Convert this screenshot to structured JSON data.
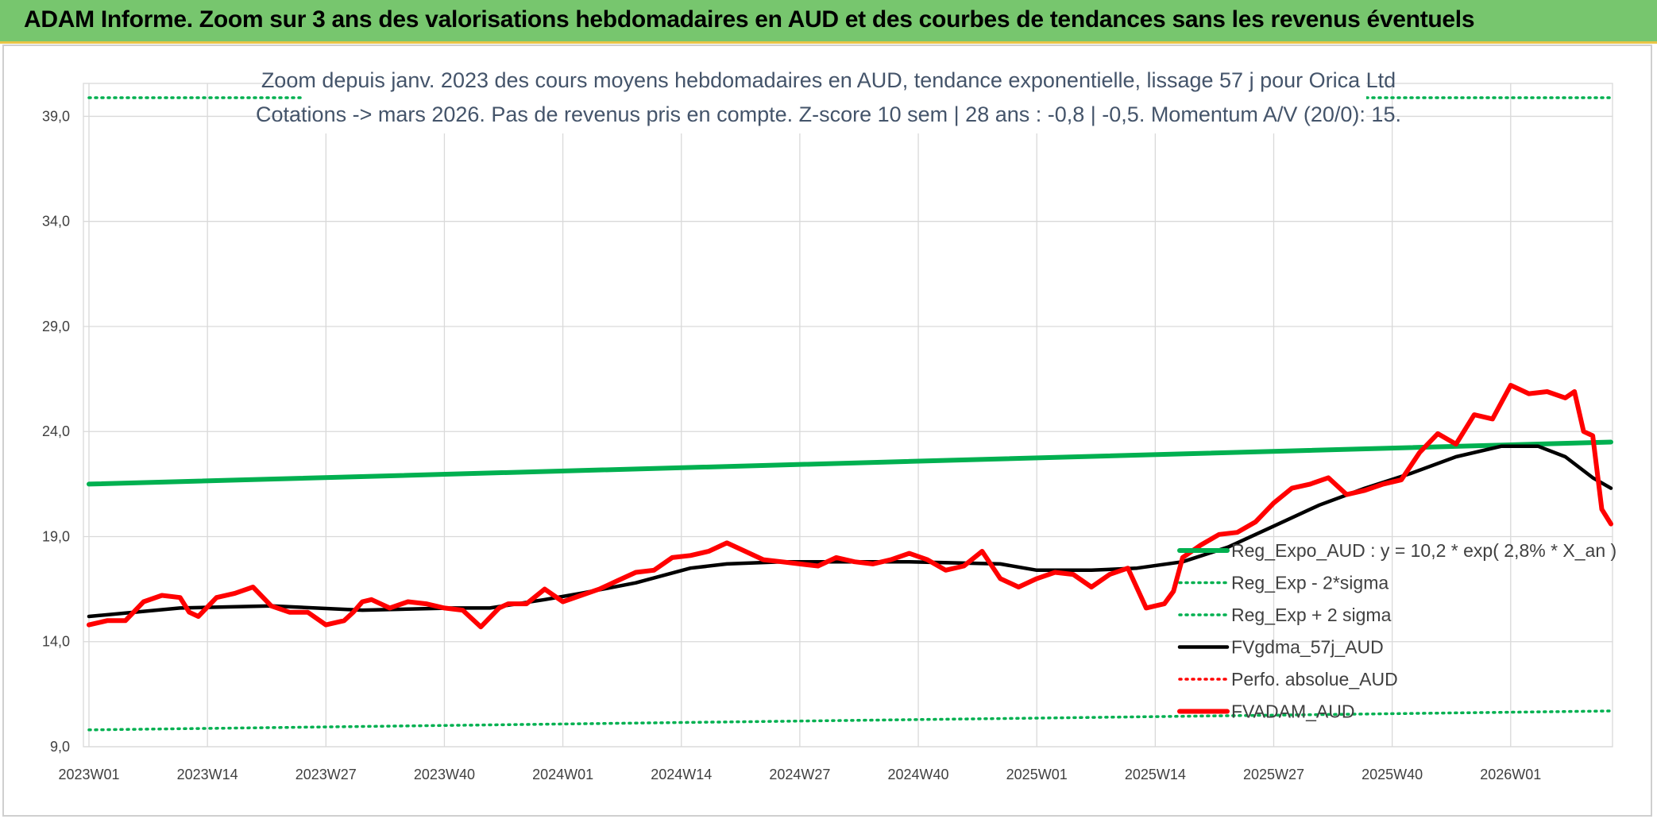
{
  "header": {
    "title": "ADAM Informe. Zoom sur 3 ans des valorisations hebdomadaires en AUD et des courbes de tendances sans les revenus éventuels"
  },
  "chart_data": {
    "type": "line",
    "title": "Zoom depuis janv. 2023 des cours moyens hebdomadaires en AUD, tendance exponentielle, lissage 57 j pour Orica Ltd",
    "subtitle": "Cotations -> mars 2026. Pas de revenus pris en compte. Z-score 10 sem | 28 ans : -0,8 | -0,5. Momentum A/V (20/0): 15.",
    "xlabel": "",
    "ylabel": "",
    "ylim": [
      9,
      40
    ],
    "xlim": [
      0,
      167
    ],
    "grid": true,
    "legend_position": "bottom-right",
    "y_ticks": [
      "9,0",
      "14,0",
      "19,0",
      "24,0",
      "29,0",
      "34,0",
      "39,0"
    ],
    "y_tick_values": [
      9,
      14,
      19,
      24,
      29,
      34,
      39
    ],
    "x_ticks": [
      "2023W01",
      "2023W14",
      "2023W27",
      "2023W40",
      "2024W01",
      "2024W14",
      "2024W27",
      "2024W40",
      "2025W01",
      "2025W14",
      "2025W27",
      "2025W40",
      "2026W01"
    ],
    "x_tick_positions": [
      0,
      13,
      26,
      39,
      52,
      65,
      78,
      91,
      104,
      117,
      130,
      143,
      156
    ],
    "series": [
      {
        "name": "Reg_Expo_AUD : y = 10,2 * exp( 2,8% *  X_an )",
        "color": "#00b050",
        "style": "solid-thick",
        "x": [
          0,
          167
        ],
        "values": [
          21.5,
          23.5
        ]
      },
      {
        "name": "Reg_Exp - 2*sigma",
        "color": "#00b050",
        "style": "dotted",
        "x": [
          0,
          167
        ],
        "values": [
          9.8,
          10.7
        ]
      },
      {
        "name": "Reg_Exp + 2 sigma",
        "color": "#00b050",
        "style": "dotted",
        "x": [
          0,
          167
        ],
        "values": [
          40.0,
          40.0
        ]
      },
      {
        "name": "FVgdma_57j_AUD",
        "color": "#000000",
        "style": "solid",
        "x": [
          0,
          10,
          20,
          30,
          40,
          44,
          50,
          54,
          60,
          66,
          70,
          76,
          84,
          90,
          100,
          104,
          110,
          115,
          120,
          125,
          130,
          135,
          140,
          145,
          150,
          155,
          159,
          162,
          165,
          167
        ],
        "values": [
          15.2,
          15.6,
          15.7,
          15.5,
          15.6,
          15.6,
          16.0,
          16.3,
          16.8,
          17.5,
          17.7,
          17.8,
          17.8,
          17.8,
          17.7,
          17.4,
          17.4,
          17.5,
          17.8,
          18.5,
          19.5,
          20.5,
          21.3,
          22.0,
          22.8,
          23.3,
          23.3,
          22.8,
          21.8,
          21.3
        ]
      },
      {
        "name": "Perfo. absolue_AUD",
        "color": "#ff0000",
        "style": "dotted",
        "x": [],
        "values": []
      },
      {
        "name": "FVADAM_AUD",
        "color": "#ff0000",
        "style": "solid-thick",
        "x": [
          0,
          2,
          4,
          6,
          8,
          10,
          11,
          12,
          14,
          16,
          18,
          20,
          22,
          24,
          26,
          27,
          28,
          29,
          30,
          31,
          33,
          35,
          37,
          39,
          41,
          43,
          45,
          46,
          48,
          50,
          52,
          54,
          56,
          58,
          60,
          62,
          64,
          66,
          68,
          70,
          72,
          74,
          76,
          78,
          80,
          82,
          84,
          86,
          88,
          90,
          92,
          94,
          96,
          98,
          100,
          102,
          104,
          106,
          108,
          110,
          112,
          114,
          116,
          118,
          119,
          120,
          122,
          124,
          126,
          128,
          130,
          132,
          134,
          136,
          138,
          140,
          142,
          144,
          146,
          148,
          150,
          152,
          154,
          156,
          158,
          160,
          162,
          163,
          164,
          165,
          166,
          167
        ],
        "values": [
          14.8,
          15.0,
          15.0,
          15.9,
          16.2,
          16.1,
          15.4,
          15.2,
          16.1,
          16.3,
          16.6,
          15.7,
          15.4,
          15.4,
          14.8,
          14.9,
          15.0,
          15.4,
          15.9,
          16.0,
          15.6,
          15.9,
          15.8,
          15.6,
          15.5,
          14.7,
          15.6,
          15.8,
          15.8,
          16.5,
          15.9,
          16.2,
          16.5,
          16.9,
          17.3,
          17.4,
          18.0,
          18.1,
          18.3,
          18.7,
          18.3,
          17.9,
          17.8,
          17.7,
          17.6,
          18.0,
          17.8,
          17.7,
          17.9,
          18.2,
          17.9,
          17.4,
          17.6,
          18.3,
          17.0,
          16.6,
          17.0,
          17.3,
          17.2,
          16.6,
          17.2,
          17.5,
          15.6,
          15.8,
          16.4,
          18.0,
          18.6,
          19.1,
          19.2,
          19.7,
          20.6,
          21.3,
          21.5,
          21.8,
          21.0,
          21.2,
          21.5,
          21.7,
          23.0,
          23.9,
          23.4,
          24.8,
          24.6,
          26.2,
          25.8,
          25.9,
          25.6,
          25.9,
          24.0,
          23.8,
          20.3,
          19.6
        ]
      }
    ]
  }
}
